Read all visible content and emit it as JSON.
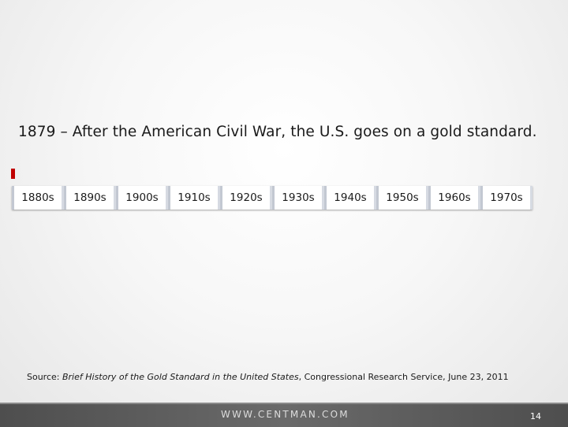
{
  "slide": {
    "headline": "1879 – After the American Civil War, the U.S. goes on a gold standard.",
    "accent_color": "#c00000"
  },
  "timeline": {
    "decades": [
      "1880s",
      "1890s",
      "1900s",
      "1910s",
      "1920s",
      "1930s",
      "1940s",
      "1950s",
      "1960s",
      "1970s"
    ]
  },
  "source": {
    "prefix": "Source: ",
    "title": "Brief History of the Gold Standard in the United States",
    "suffix": ", Congressional Research Service, June 23, 2011"
  },
  "footer": {
    "url": "WWW.CENTMAN.COM",
    "page_number": "14"
  }
}
